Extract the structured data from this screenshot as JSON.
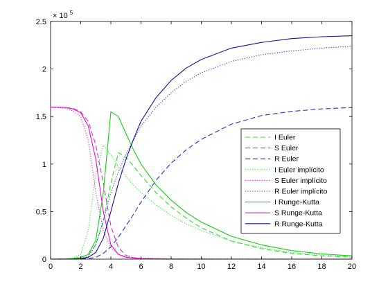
{
  "chart_data": {
    "type": "line",
    "title": "",
    "xlabel": "",
    "ylabel": "",
    "xlim": [
      0,
      20
    ],
    "ylim": [
      0,
      250000
    ],
    "x_ticks": [
      "0",
      "2",
      "4",
      "6",
      "8",
      "10",
      "12",
      "14",
      "16",
      "18",
      "20"
    ],
    "y_ticks": [
      "0",
      "0.5",
      "1",
      "1.5",
      "2",
      "2.5"
    ],
    "y_exponent": {
      "base": "× 10",
      "power": "5"
    },
    "grid": false,
    "legend_position": "right-center",
    "x": [
      0,
      1,
      1.5,
      2,
      2.5,
      3,
      3.5,
      4,
      4.5,
      5,
      5.5,
      6,
      7,
      8,
      9,
      10,
      12,
      14,
      16,
      18,
      20
    ],
    "series": [
      {
        "name": "I Euler",
        "color": "#33dd33",
        "dash": "long",
        "values": [
          0,
          300,
          800,
          2000,
          5000,
          15000,
          40000,
          80000,
          112000,
          107000,
          98000,
          88000,
          70000,
          55000,
          43000,
          33000,
          19000,
          11000,
          6000,
          3500,
          2000
        ]
      },
      {
        "name": "S Euler",
        "color": "#dd22cc",
        "dash": "long",
        "values": [
          160000,
          159500,
          158500,
          155000,
          145000,
          120000,
          80000,
          35000,
          12000,
          4000,
          1500,
          700,
          300,
          150,
          100,
          80,
          50,
          40,
          30,
          20,
          10
        ]
      },
      {
        "name": "R Euler",
        "color": "#2233bb",
        "dash": "long",
        "values": [
          0,
          0,
          50,
          150,
          500,
          2000,
          6000,
          13000,
          23000,
          35000,
          47000,
          60000,
          83000,
          101000,
          115000,
          126000,
          142000,
          151000,
          155500,
          158000,
          159500
        ]
      },
      {
        "name": "I Euler implícito",
        "color": "#33dd33",
        "dash": "dot",
        "values": [
          0,
          300,
          1000,
          5000,
          30000,
          90000,
          120000,
          110000,
          97000,
          87000,
          78000,
          70000,
          57000,
          46000,
          37000,
          30000,
          19000,
          12000,
          7000,
          4500,
          2800
        ]
      },
      {
        "name": "S Euler implícito",
        "color": "#dd22cc",
        "dash": "dot",
        "values": [
          160000,
          158500,
          156000,
          150000,
          125000,
          70000,
          30000,
          12000,
          5000,
          2500,
          1500,
          1000,
          600,
          400,
          300,
          200,
          150,
          100,
          80,
          60,
          50
        ]
      },
      {
        "name": "R Euler implícito",
        "color": "#2233bb",
        "dash": "dot",
        "values": [
          0,
          0,
          100,
          500,
          3000,
          15000,
          40000,
          70000,
          92000,
          110000,
          125000,
          140000,
          160000,
          175000,
          187000,
          196000,
          208000,
          215000,
          219000,
          222000,
          224000
        ]
      },
      {
        "name": "I Runge-Kutta",
        "color": "#11cc11",
        "dash": "solid",
        "values": [
          0,
          200,
          600,
          1500,
          5000,
          20000,
          70000,
          155000,
          150000,
          132000,
          115000,
          100000,
          78000,
          62000,
          49000,
          39000,
          24000,
          15000,
          9000,
          5500,
          3500
        ]
      },
      {
        "name": "S Runge-Kutta",
        "color": "#dd11cc",
        "dash": "solid",
        "values": [
          160000,
          159500,
          158000,
          154000,
          140000,
          105000,
          50000,
          15000,
          5000,
          2000,
          1000,
          500,
          200,
          100,
          60,
          40,
          20,
          10,
          5,
          3,
          0
        ]
      },
      {
        "name": "R Runge-Kutta",
        "color": "#111199",
        "dash": "solid",
        "values": [
          0,
          0,
          100,
          500,
          2000,
          7000,
          22000,
          50000,
          80000,
          105000,
          126000,
          145000,
          170000,
          188000,
          201000,
          210000,
          222000,
          228000,
          232000,
          234000,
          235000
        ]
      }
    ]
  }
}
